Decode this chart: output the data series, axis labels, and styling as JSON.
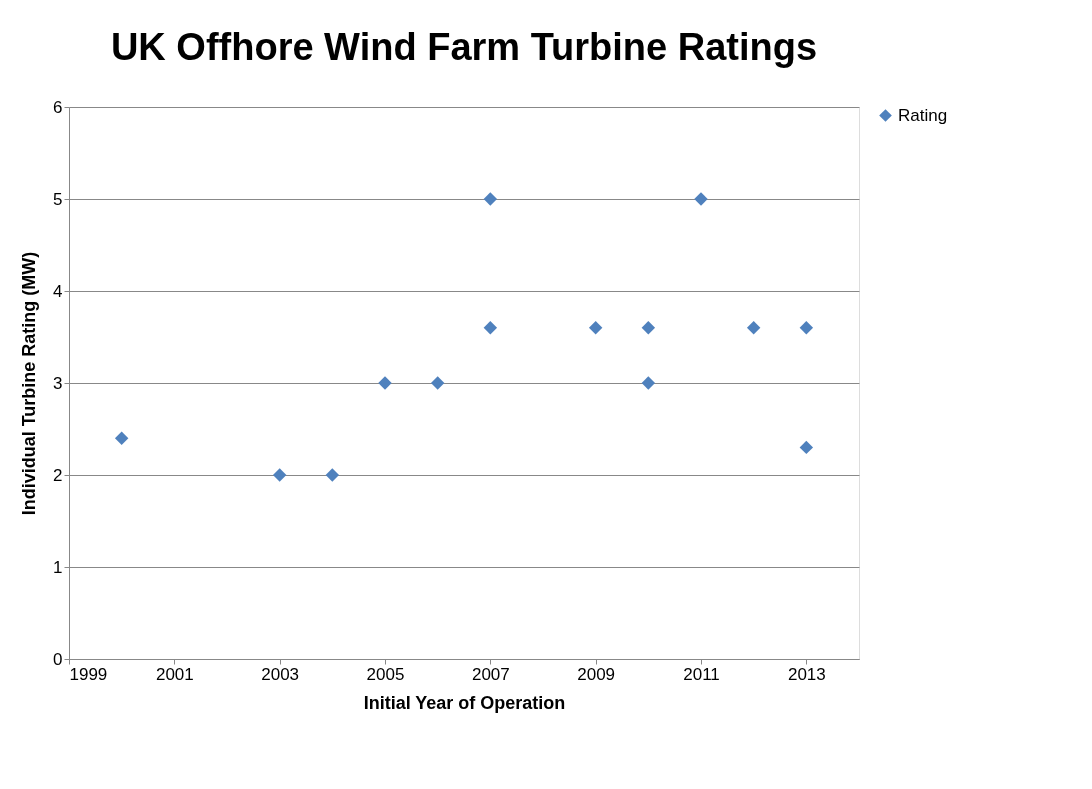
{
  "chart_data": {
    "type": "scatter",
    "title": "UK Offhore Wind Farm Turbine Ratings",
    "xlabel": "Initial Year of Operation",
    "ylabel": "Individual Turbine Rating (MW)",
    "series": [
      {
        "name": "Rating",
        "color": "#4f81bd",
        "x": [
          2000,
          2003,
          2004,
          2005,
          2006,
          2007,
          2007,
          2009,
          2010,
          2010,
          2011,
          2012,
          2013,
          2013
        ],
        "values": [
          2.4,
          2,
          2,
          3,
          3,
          5,
          3.6,
          3.6,
          3.6,
          3,
          5,
          3.6,
          3.6,
          2.3
        ]
      }
    ],
    "xlim": [
      1999,
      2014
    ],
    "xticks": [
      1999,
      2001,
      2003,
      2005,
      2007,
      2009,
      2011,
      2013
    ],
    "ylim": [
      0,
      6
    ],
    "yticks": [
      0,
      1,
      2,
      3,
      4,
      5,
      6
    ],
    "grid": "y",
    "legend": "right",
    "marker": "diamond"
  }
}
